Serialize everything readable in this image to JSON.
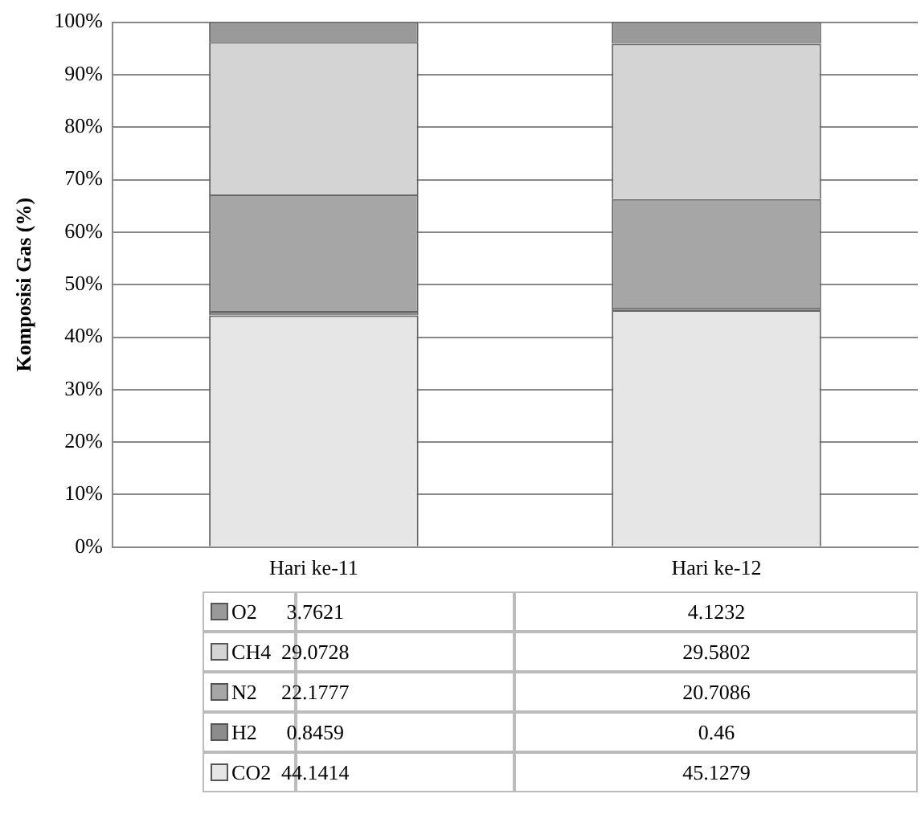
{
  "chart_data": {
    "type": "bar",
    "ylabel": "Komposisi Gas (%)",
    "categories": [
      "Hari ke-11",
      "Hari ke-12"
    ],
    "stacked": true,
    "series": [
      {
        "name": "CO2",
        "color": "#e6e6e6",
        "values": [
          44.1414,
          45.1279
        ]
      },
      {
        "name": "H2",
        "color": "#8c8c8c",
        "values": [
          0.8459,
          0.46
        ]
      },
      {
        "name": "N2",
        "color": "#a6a6a6",
        "values": [
          22.1777,
          20.7086
        ]
      },
      {
        "name": "CH4",
        "color": "#d4d4d4",
        "values": [
          29.0728,
          29.5802
        ]
      },
      {
        "name": "O2",
        "color": "#999999",
        "values": [
          3.7621,
          4.1232
        ]
      }
    ],
    "ylim": [
      0,
      100
    ],
    "yticks": [
      {
        "value": 0,
        "label": "0%"
      },
      {
        "value": 10,
        "label": "10%"
      },
      {
        "value": 20,
        "label": "20%"
      },
      {
        "value": 30,
        "label": "30%"
      },
      {
        "value": 40,
        "label": "40%"
      },
      {
        "value": 50,
        "label": "50%"
      },
      {
        "value": 60,
        "label": "60%"
      },
      {
        "value": 70,
        "label": "70%"
      },
      {
        "value": 80,
        "label": "80%"
      },
      {
        "value": 90,
        "label": "90%"
      },
      {
        "value": 100,
        "label": "100%"
      }
    ],
    "grid": "y",
    "legend": "bottom",
    "data_labels": true
  }
}
